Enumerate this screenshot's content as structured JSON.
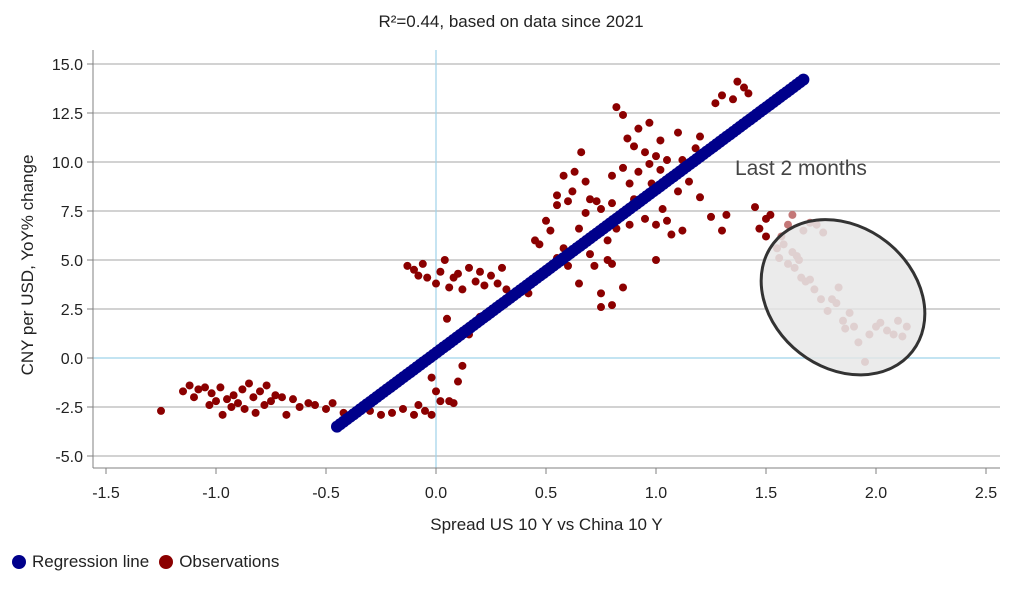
{
  "chart_data": {
    "type": "scatter",
    "title": "R²=0.44, based on data since 2021",
    "xlabel": "Spread US 10 Y vs China 10 Y",
    "ylabel": "CNY per USD, YoY% change",
    "xlim": [
      -1.5,
      2.5
    ],
    "ylim": [
      -5.0,
      15.0
    ],
    "x_ticks": [
      "-1.5",
      "-1.0",
      "-0.5",
      "0.0",
      "0.5",
      "1.0",
      "1.5",
      "2.0",
      "2.5"
    ],
    "y_ticks": [
      "-5.0",
      "-2.5",
      "0.0",
      "2.5",
      "5.0",
      "7.5",
      "10.0",
      "12.5",
      "15.0"
    ],
    "grid": "horizontal",
    "zero_lines": true,
    "legend_position": "bottom-left",
    "annotation": {
      "text": "Last 2 months",
      "ellipse_center": [
        1.85,
        3.1
      ],
      "ellipse_radii": [
        0.4,
        3.6
      ]
    },
    "series": [
      {
        "name": "Regression line",
        "color": "#00008B",
        "x_start": -0.45,
        "y_start": -3.5,
        "x_end": 1.67,
        "y_end": 14.2
      },
      {
        "name": "Observations",
        "color": "#8B0000",
        "recent_color": "#C47878",
        "points": [
          [
            -1.25,
            -2.7
          ],
          [
            -1.15,
            -1.7
          ],
          [
            -1.12,
            -1.4
          ],
          [
            -1.1,
            -2.0
          ],
          [
            -1.08,
            -1.6
          ],
          [
            -1.05,
            -1.5
          ],
          [
            -1.03,
            -2.4
          ],
          [
            -1.02,
            -1.8
          ],
          [
            -1.0,
            -2.2
          ],
          [
            -0.98,
            -1.5
          ],
          [
            -0.97,
            -2.9
          ],
          [
            -0.95,
            -2.1
          ],
          [
            -0.93,
            -2.5
          ],
          [
            -0.92,
            -1.9
          ],
          [
            -0.9,
            -2.3
          ],
          [
            -0.88,
            -1.6
          ],
          [
            -0.87,
            -2.6
          ],
          [
            -0.85,
            -1.3
          ],
          [
            -0.83,
            -2.0
          ],
          [
            -0.82,
            -2.8
          ],
          [
            -0.8,
            -1.7
          ],
          [
            -0.78,
            -2.4
          ],
          [
            -0.77,
            -1.4
          ],
          [
            -0.75,
            -2.2
          ],
          [
            -0.73,
            -1.9
          ],
          [
            -0.7,
            -2.0
          ],
          [
            -0.68,
            -2.9
          ],
          [
            -0.65,
            -2.1
          ],
          [
            -0.62,
            -2.5
          ],
          [
            -0.58,
            -2.3
          ],
          [
            -0.55,
            -2.4
          ],
          [
            -0.5,
            -2.6
          ],
          [
            -0.47,
            -2.3
          ],
          [
            -0.42,
            -2.8
          ],
          [
            -0.38,
            -3.0
          ],
          [
            -0.3,
            -2.7
          ],
          [
            -0.25,
            -2.9
          ],
          [
            -0.2,
            -2.8
          ],
          [
            -0.15,
            -2.6
          ],
          [
            -0.1,
            -2.9
          ],
          [
            -0.08,
            -2.4
          ],
          [
            -0.05,
            -2.7
          ],
          [
            -0.02,
            -2.9
          ],
          [
            -0.13,
            4.7
          ],
          [
            -0.1,
            4.5
          ],
          [
            -0.08,
            4.2
          ],
          [
            -0.06,
            4.8
          ],
          [
            -0.04,
            4.1
          ],
          [
            -0.02,
            -1.0
          ],
          [
            0.0,
            -1.7
          ],
          [
            0.02,
            -2.2
          ],
          [
            0.0,
            3.8
          ],
          [
            0.02,
            4.4
          ],
          [
            0.04,
            5.0
          ],
          [
            0.06,
            3.6
          ],
          [
            0.08,
            4.1
          ],
          [
            0.1,
            4.3
          ],
          [
            0.12,
            3.5
          ],
          [
            0.15,
            4.6
          ],
          [
            0.18,
            3.9
          ],
          [
            0.2,
            4.4
          ],
          [
            0.22,
            3.7
          ],
          [
            0.25,
            4.2
          ],
          [
            0.28,
            3.8
          ],
          [
            0.3,
            4.6
          ],
          [
            0.32,
            3.5
          ],
          [
            0.1,
            -1.2
          ],
          [
            0.08,
            -2.3
          ],
          [
            0.06,
            -2.2
          ],
          [
            0.12,
            -0.4
          ],
          [
            0.15,
            1.2
          ],
          [
            0.05,
            2.0
          ],
          [
            0.2,
            2.1
          ],
          [
            0.42,
            3.3
          ],
          [
            0.45,
            6.0
          ],
          [
            0.47,
            5.8
          ],
          [
            0.5,
            7.0
          ],
          [
            0.5,
            4.5
          ],
          [
            0.52,
            6.5
          ],
          [
            0.55,
            8.3
          ],
          [
            0.55,
            7.8
          ],
          [
            0.55,
            5.1
          ],
          [
            0.58,
            9.3
          ],
          [
            0.58,
            5.6
          ],
          [
            0.6,
            8.0
          ],
          [
            0.6,
            4.7
          ],
          [
            0.62,
            8.5
          ],
          [
            0.63,
            9.5
          ],
          [
            0.65,
            6.6
          ],
          [
            0.65,
            3.8
          ],
          [
            0.66,
            10.5
          ],
          [
            0.68,
            9.0
          ],
          [
            0.68,
            7.4
          ],
          [
            0.7,
            8.1
          ],
          [
            0.7,
            5.3
          ],
          [
            0.72,
            6.2
          ],
          [
            0.72,
            4.7
          ],
          [
            0.73,
            8.0
          ],
          [
            0.75,
            7.6
          ],
          [
            0.75,
            3.3
          ],
          [
            0.75,
            2.6
          ],
          [
            0.78,
            6.0
          ],
          [
            0.78,
            5.0
          ],
          [
            0.8,
            9.3
          ],
          [
            0.8,
            7.9
          ],
          [
            0.8,
            4.8
          ],
          [
            0.8,
            2.7
          ],
          [
            0.82,
            12.8
          ],
          [
            0.82,
            6.6
          ],
          [
            0.83,
            7.2
          ],
          [
            0.85,
            12.4
          ],
          [
            0.85,
            9.7
          ],
          [
            0.85,
            3.6
          ],
          [
            0.87,
            11.2
          ],
          [
            0.88,
            8.9
          ],
          [
            0.88,
            6.8
          ],
          [
            0.9,
            10.8
          ],
          [
            0.9,
            8.1
          ],
          [
            0.92,
            11.7
          ],
          [
            0.92,
            9.5
          ],
          [
            0.95,
            10.5
          ],
          [
            0.95,
            7.1
          ],
          [
            0.97,
            12.0
          ],
          [
            0.97,
            9.9
          ],
          [
            0.98,
            8.9
          ],
          [
            1.0,
            10.3
          ],
          [
            1.0,
            6.8
          ],
          [
            1.0,
            5.0
          ],
          [
            1.02,
            11.1
          ],
          [
            1.02,
            9.6
          ],
          [
            1.03,
            7.6
          ],
          [
            1.05,
            10.1
          ],
          [
            1.05,
            7.0
          ],
          [
            1.07,
            9.3
          ],
          [
            1.07,
            6.3
          ],
          [
            1.1,
            11.5
          ],
          [
            1.1,
            8.5
          ],
          [
            1.12,
            10.1
          ],
          [
            1.12,
            6.5
          ],
          [
            1.15,
            9.0
          ],
          [
            1.18,
            10.7
          ],
          [
            1.2,
            11.3
          ],
          [
            1.2,
            8.2
          ],
          [
            1.25,
            7.2
          ],
          [
            1.27,
            13.0
          ],
          [
            1.3,
            13.4
          ],
          [
            1.3,
            6.5
          ],
          [
            1.32,
            7.3
          ],
          [
            1.35,
            13.2
          ],
          [
            1.37,
            14.1
          ],
          [
            1.4,
            13.8
          ],
          [
            1.42,
            13.5
          ],
          [
            1.45,
            7.7
          ],
          [
            1.47,
            6.6
          ],
          [
            1.5,
            7.1
          ],
          [
            1.5,
            6.2
          ],
          [
            1.52,
            7.3
          ]
        ],
        "recent_points": [
          [
            1.55,
            5.6
          ],
          [
            1.56,
            5.1
          ],
          [
            1.57,
            6.2
          ],
          [
            1.58,
            5.8
          ],
          [
            1.6,
            6.8
          ],
          [
            1.6,
            4.8
          ],
          [
            1.62,
            7.3
          ],
          [
            1.62,
            5.4
          ],
          [
            1.63,
            4.6
          ],
          [
            1.64,
            5.2
          ],
          [
            1.65,
            5.0
          ],
          [
            1.66,
            4.1
          ],
          [
            1.67,
            6.5
          ],
          [
            1.68,
            3.9
          ],
          [
            1.7,
            4.0
          ],
          [
            1.7,
            6.9
          ],
          [
            1.72,
            3.5
          ],
          [
            1.73,
            6.8
          ],
          [
            1.75,
            3.0
          ],
          [
            1.76,
            6.4
          ],
          [
            1.78,
            2.4
          ],
          [
            1.8,
            3.0
          ],
          [
            1.82,
            2.8
          ],
          [
            1.83,
            3.6
          ],
          [
            1.85,
            1.9
          ],
          [
            1.86,
            1.5
          ],
          [
            1.88,
            2.3
          ],
          [
            1.9,
            1.6
          ],
          [
            1.92,
            0.8
          ],
          [
            1.95,
            -0.2
          ],
          [
            1.97,
            1.2
          ],
          [
            2.0,
            1.6
          ],
          [
            2.02,
            1.8
          ],
          [
            2.05,
            1.4
          ],
          [
            2.08,
            1.2
          ],
          [
            2.1,
            1.9
          ],
          [
            2.12,
            1.1
          ],
          [
            2.14,
            1.6
          ]
        ]
      }
    ]
  }
}
